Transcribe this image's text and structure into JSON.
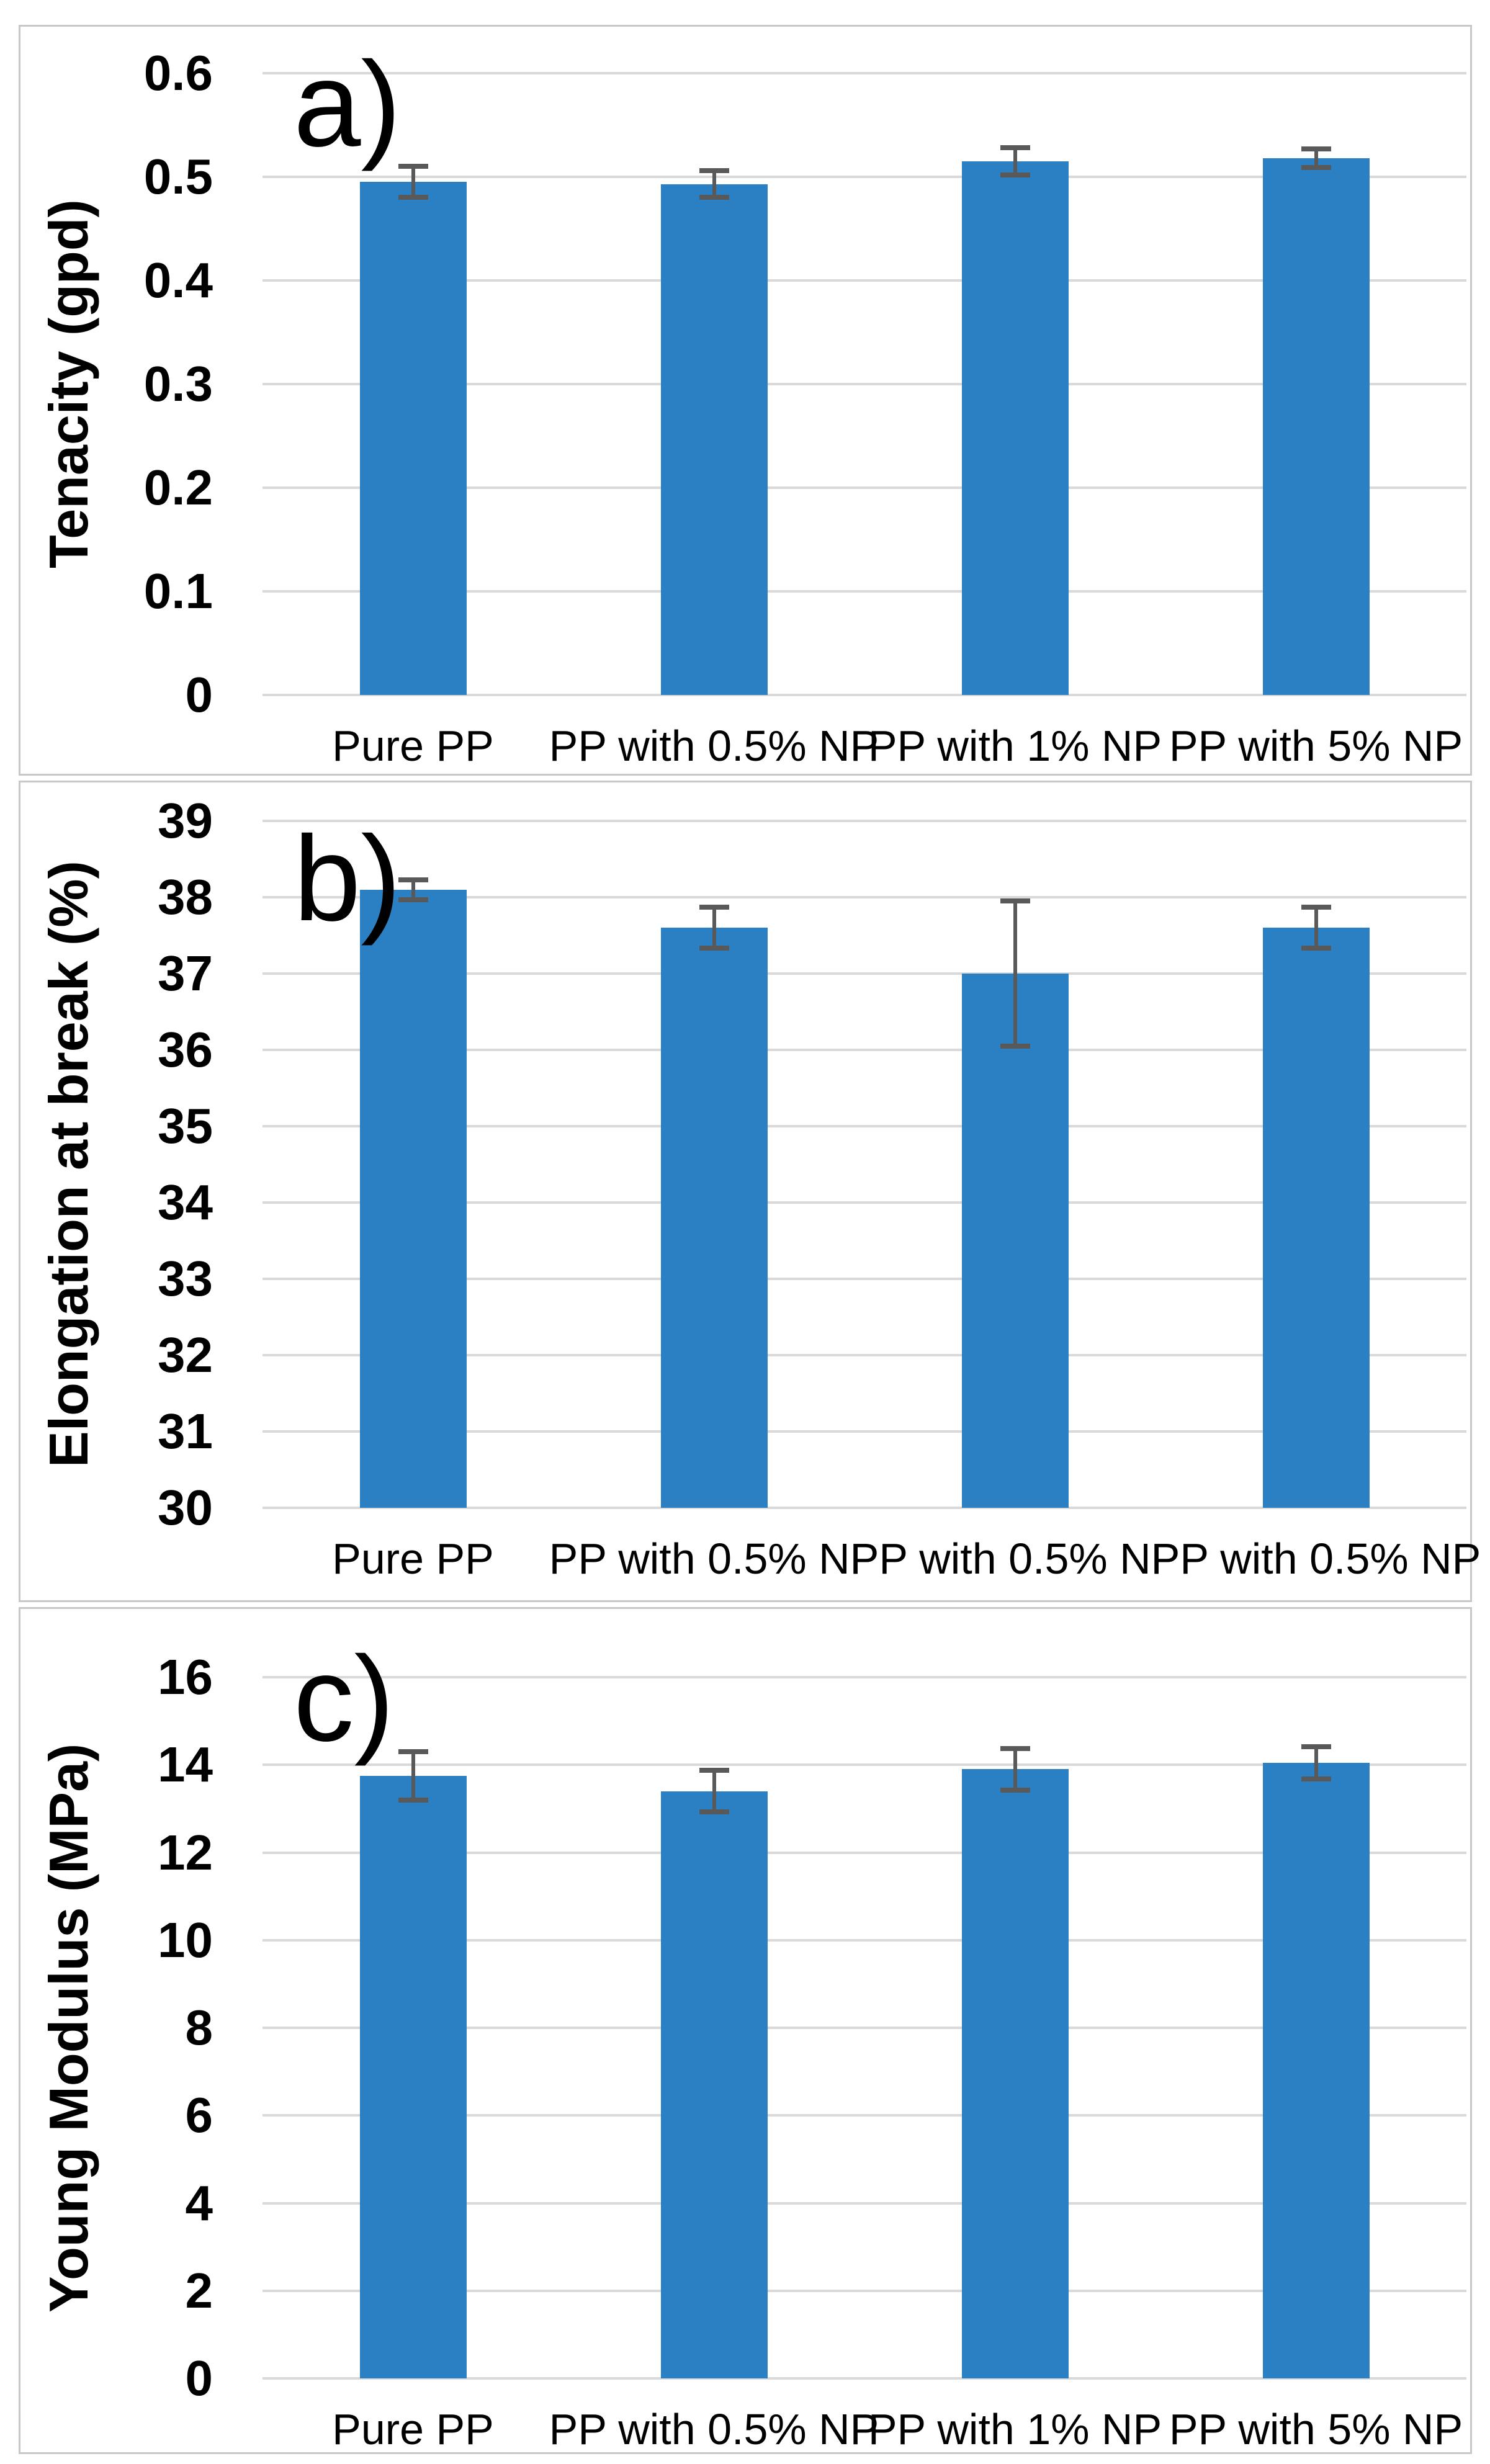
{
  "figure": {
    "description": "Three stacked bar charts of polypropylene fiber mechanical properties",
    "colors": {
      "bar_fill": "#2a80c2",
      "gridline": "#d9d9d9",
      "error_bar": "#595959",
      "panel_border": "#c8c8c8",
      "background": "#ffffff",
      "text": "#000000"
    }
  },
  "chart_data": [
    {
      "type": "bar",
      "panel_label": "a)",
      "title": "",
      "xlabel": "",
      "ylabel": "Tenacity (gpd)",
      "ylim": [
        0,
        0.6
      ],
      "ytick_step": 0.1,
      "ytick_labels": [
        "0.6",
        "0.5",
        "0.4",
        "0.3",
        "0.2",
        "0.1",
        "0"
      ],
      "grid": true,
      "legend_position": "none",
      "categories": [
        "Pure PP",
        "PP with 0.5% NP",
        "PP with 1% NP",
        "PP with 5% NP"
      ],
      "values": [
        0.495,
        0.493,
        0.515,
        0.518
      ],
      "error_bars": [
        0.015,
        0.013,
        0.013,
        0.009
      ]
    },
    {
      "type": "bar",
      "panel_label": "b)",
      "title": "",
      "xlabel": "",
      "ylabel": "Elongation at break (%)",
      "ylim": [
        30,
        39
      ],
      "ytick_step": 1,
      "ytick_labels": [
        "39",
        "38",
        "37",
        "36",
        "35",
        "34",
        "33",
        "32",
        "31",
        "30"
      ],
      "grid": true,
      "legend_position": "none",
      "categories": [
        "Pure PP",
        "PP with 0.5% NP",
        "PP with 0.5% NP",
        "PP with 0.5% NP"
      ],
      "values": [
        38.1,
        37.6,
        37.0,
        37.6
      ],
      "error_bars": [
        0.13,
        0.27,
        0.95,
        0.27
      ]
    },
    {
      "type": "bar",
      "panel_label": "c)",
      "title": "",
      "xlabel": "",
      "ylabel": "Young Modulus (MPa)",
      "ylim": [
        0,
        16
      ],
      "ytick_step": 2,
      "ytick_labels": [
        "16",
        "14",
        "12",
        "10",
        "8",
        "6",
        "4",
        "2",
        "0"
      ],
      "grid": true,
      "legend_position": "none",
      "categories": [
        "Pure PP",
        "PP with 0.5% NP",
        "PP with 1% NP",
        "PP with 5% NP"
      ],
      "values": [
        13.75,
        13.4,
        13.9,
        14.05
      ],
      "error_bars": [
        0.55,
        0.47,
        0.47,
        0.37
      ]
    }
  ]
}
